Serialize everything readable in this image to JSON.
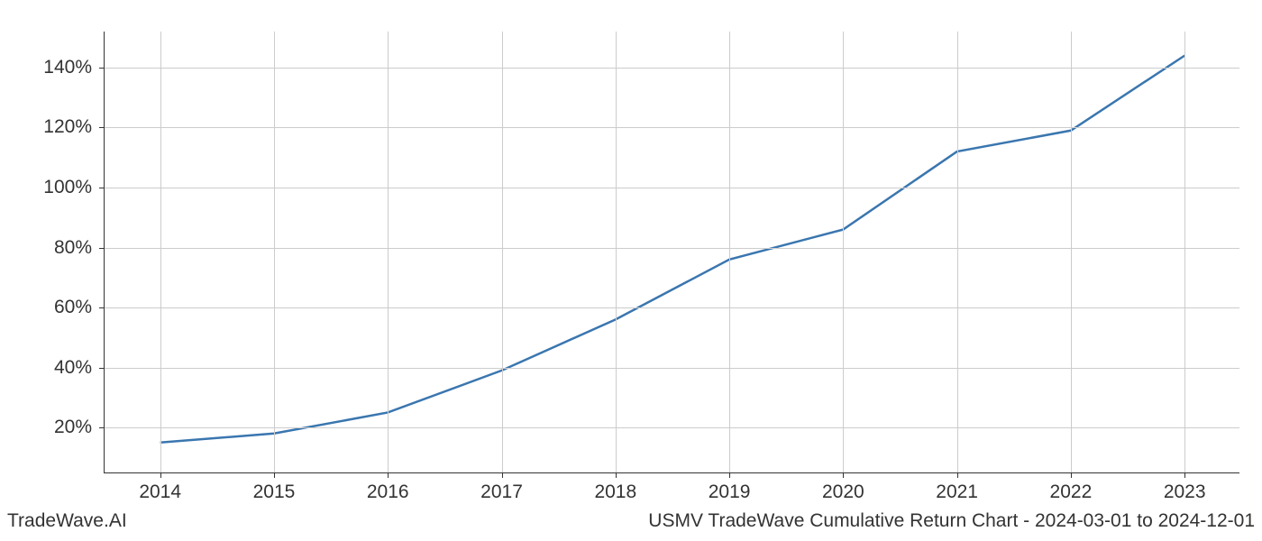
{
  "chart": {
    "type": "line",
    "background_color": "#ffffff",
    "grid_color": "#cccccc",
    "axis_color": "#333333",
    "text_color": "#333333",
    "tick_fontsize": 21,
    "footer_fontsize": 21,
    "line_color": "#3a76af",
    "line_width": 2.5,
    "x_categories": [
      "2014",
      "2015",
      "2016",
      "2017",
      "2018",
      "2019",
      "2020",
      "2021",
      "2022",
      "2023"
    ],
    "x_positions_pct": [
      4.9,
      14.93,
      24.96,
      34.99,
      45.02,
      55.05,
      65.08,
      75.11,
      85.14,
      95.17
    ],
    "y_ticks": [
      20,
      40,
      60,
      80,
      100,
      120,
      140
    ],
    "y_tick_labels": [
      "20%",
      "40%",
      "60%",
      "80%",
      "100%",
      "120%",
      "140%"
    ],
    "ylim": [
      5,
      152
    ],
    "series": {
      "x": [
        0,
        1,
        2,
        3,
        4,
        5,
        6,
        7,
        8,
        9
      ],
      "y": [
        15,
        18,
        25,
        39,
        56,
        76,
        86,
        112,
        119,
        144
      ]
    }
  },
  "footer": {
    "left": "TradeWave.AI",
    "right": "USMV TradeWave Cumulative Return Chart - 2024-03-01 to 2024-12-01"
  }
}
